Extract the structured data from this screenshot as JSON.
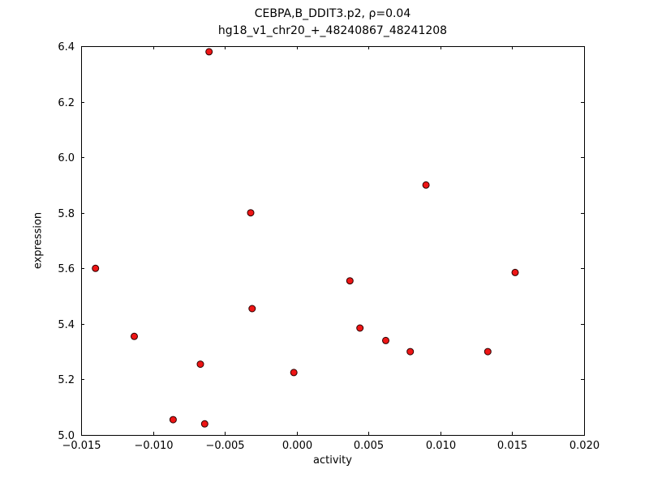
{
  "chart_data": {
    "type": "scatter",
    "title_line1": "CEBPA,B_DDIT3.p2, ρ=0.04",
    "title_line2": "hg18_v1_chr20_+_48240867_48241208",
    "xlabel": "activity",
    "ylabel": "expression",
    "xlim": [
      -0.015,
      0.02
    ],
    "ylim": [
      5.0,
      6.4
    ],
    "xticks": [
      -0.015,
      -0.01,
      -0.005,
      0.0,
      0.005,
      0.01,
      0.015,
      0.02
    ],
    "xtick_labels": [
      "−0.015",
      "−0.010",
      "−0.005",
      "0.000",
      "0.005",
      "0.010",
      "0.015",
      "0.020"
    ],
    "yticks": [
      5.0,
      5.2,
      5.4,
      5.6,
      5.8,
      6.0,
      6.2,
      6.4
    ],
    "ytick_labels": [
      "5.0",
      "5.2",
      "5.4",
      "5.6",
      "5.8",
      "6.0",
      "6.2",
      "6.4"
    ],
    "legend": "none",
    "grid": false,
    "marker": {
      "shape": "circle",
      "fill": "#ee1515",
      "edge": "#2a0000",
      "radius": 4
    },
    "points": [
      {
        "x": -0.014,
        "y": 5.6
      },
      {
        "x": -0.0113,
        "y": 5.355
      },
      {
        "x": -0.0086,
        "y": 5.055
      },
      {
        "x": -0.0067,
        "y": 5.255
      },
      {
        "x": -0.0064,
        "y": 5.04
      },
      {
        "x": -0.0061,
        "y": 6.38
      },
      {
        "x": -0.0032,
        "y": 5.8
      },
      {
        "x": -0.0031,
        "y": 5.455
      },
      {
        "x": -0.0002,
        "y": 5.225
      },
      {
        "x": 0.0037,
        "y": 5.555
      },
      {
        "x": 0.0044,
        "y": 5.385
      },
      {
        "x": 0.0062,
        "y": 5.34
      },
      {
        "x": 0.0079,
        "y": 5.3
      },
      {
        "x": 0.009,
        "y": 5.9
      },
      {
        "x": 0.0133,
        "y": 5.3
      },
      {
        "x": 0.0152,
        "y": 5.585
      }
    ]
  }
}
